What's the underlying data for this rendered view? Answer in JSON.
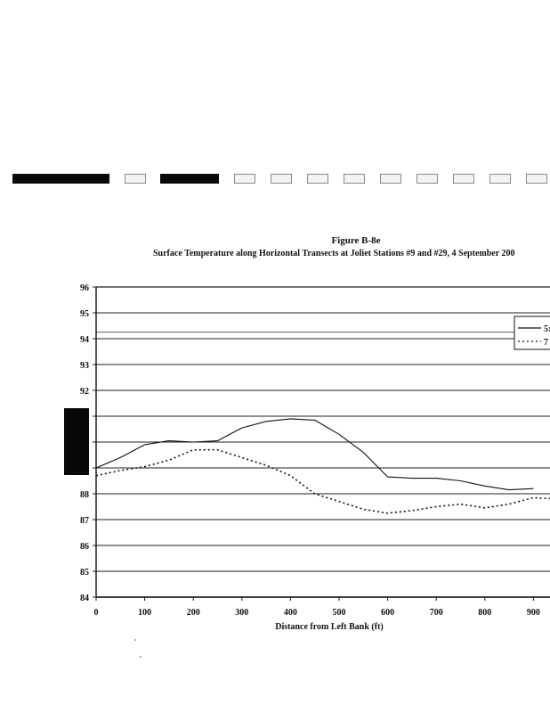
{
  "figure_number": "Figure B-8e",
  "figure_title": "Surface Temperature along Horizontal Transects at Joliet Stations #9 and #29, 4 September 200",
  "legend_labels": [
    "5:",
    "7"
  ],
  "chart_data": {
    "type": "line",
    "title": "Surface Temperature along Horizontal Transects at Joliet Stations #9 and #29, 4 September 200",
    "xlabel": "Distance from Left Bank (ft)",
    "ylabel": "",
    "xlim": [
      0,
      950
    ],
    "ylim": [
      84,
      96
    ],
    "x_ticks": [
      "0",
      "100",
      "200",
      "300",
      "400",
      "500",
      "600",
      "700",
      "800",
      "900"
    ],
    "y_ticks": [
      "84",
      "85",
      "86",
      "87",
      "88",
      "",
      "",
      "",
      "92",
      "93",
      "94",
      "95",
      "96"
    ],
    "grid": true,
    "legend_position": "right",
    "series": [
      {
        "name": "5:",
        "style": "solid",
        "x": [
          0,
          50,
          100,
          150,
          200,
          250,
          300,
          350,
          400,
          450,
          500,
          550,
          600,
          650,
          700,
          750,
          800,
          850,
          900
        ],
        "y": [
          89.0,
          89.4,
          89.9,
          90.05,
          90.0,
          90.05,
          90.55,
          90.8,
          90.9,
          90.85,
          90.3,
          89.6,
          88.65,
          88.6,
          88.6,
          88.5,
          88.3,
          88.15,
          88.2
        ]
      },
      {
        "name": "7",
        "style": "dotted",
        "x": [
          0,
          50,
          100,
          150,
          200,
          250,
          300,
          350,
          400,
          450,
          500,
          550,
          600,
          650,
          700,
          750,
          800,
          850,
          900,
          950
        ],
        "y": [
          88.7,
          88.9,
          89.05,
          89.3,
          89.7,
          89.7,
          89.4,
          89.1,
          88.7,
          88.0,
          87.7,
          87.4,
          87.25,
          87.35,
          87.5,
          87.6,
          87.45,
          87.6,
          87.85,
          87.8
        ]
      }
    ]
  }
}
